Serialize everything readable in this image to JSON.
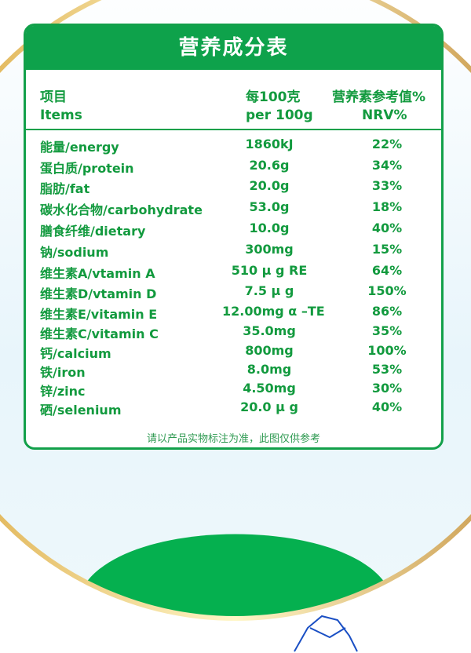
{
  "title": "营养成分表",
  "header": {
    "items_cn": "项目",
    "items_en": "Items",
    "per_cn": "每100克",
    "per_en": "per 100g",
    "nrv_cn": "营养素参考值%",
    "nrv_en": "NRV%"
  },
  "rows": [
    {
      "name": "能量/energy",
      "value": "1860kJ",
      "nrv": "22%"
    },
    {
      "name": "蛋白质/protein",
      "value": "20.6g",
      "nrv": "34%"
    },
    {
      "name": "脂肪/fat",
      "value": "20.0g",
      "nrv": "33%"
    },
    {
      "name": "碳水化合物/carbohydrate",
      "value": "53.0g",
      "nrv": "18%"
    },
    {
      "name": "膳食纤维/dietary",
      "value": "10.0g",
      "nrv": "40%"
    },
    {
      "name": "钠/sodium",
      "value": "300mg",
      "nrv": "15%"
    },
    {
      "name": "维生素A/vtamin A",
      "value": "510 μ g RE",
      "nrv": "64%"
    },
    {
      "name": "维生素D/vtamin D",
      "value": "7.5 μ g",
      "nrv": "150%"
    },
    {
      "name": "维生素E/vitamin E",
      "value": "12.00mg α –TE",
      "nrv": "86%"
    },
    {
      "name": "维生素C/vitamin C",
      "value": "35.0mg",
      "nrv": "35%"
    },
    {
      "name": "钙/calcium",
      "value": "800mg",
      "nrv": "100%"
    },
    {
      "name": "铁/iron",
      "value": "8.0mg",
      "nrv": "53%"
    },
    {
      "name": "锌/zinc",
      "value": "4.50mg",
      "nrv": "30%"
    },
    {
      "name": "硒/selenium",
      "value": "20.0 μ g",
      "nrv": "40%"
    }
  ],
  "note": "请以产品实物标注为准，此图仅供参考",
  "colors": {
    "brand_green": "#0ea24b",
    "text_green": "#129a3e",
    "gold": "#d8a845"
  }
}
